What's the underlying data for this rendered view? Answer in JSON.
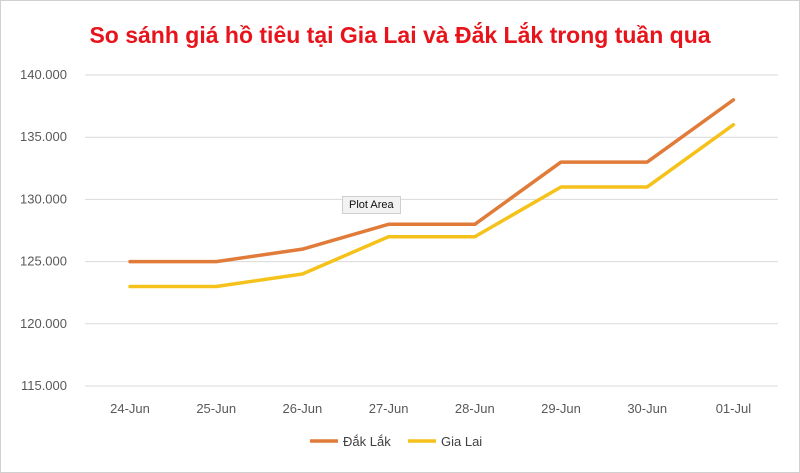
{
  "chart_data": {
    "type": "line",
    "title": "So sánh giá hồ tiêu tại Gia Lai và Đắk Lắk trong tuần qua",
    "categories": [
      "24-Jun",
      "25-Jun",
      "26-Jun",
      "27-Jun",
      "28-Jun",
      "29-Jun",
      "30-Jun",
      "01-Jul"
    ],
    "yticks": [
      "115.000",
      "120.000",
      "125.000",
      "130.000",
      "135.000",
      "140.000"
    ],
    "ylim": [
      115000,
      140000
    ],
    "grid": true,
    "legend": "bottom",
    "series": [
      {
        "name": "Đắk Lắk",
        "color": "#e07b39",
        "values": [
          125000,
          125000,
          126000,
          128000,
          128000,
          133000,
          133000,
          138000
        ]
      },
      {
        "name": "Gia Lai",
        "color": "#f5c21b",
        "values": [
          123000,
          123000,
          124000,
          127000,
          127000,
          131000,
          131000,
          136000
        ]
      }
    ]
  },
  "tooltip": {
    "label": "Plot Area"
  },
  "colors": {
    "title": "#e8141b",
    "grid": "#d9d9d9",
    "tick_text": "#595959"
  }
}
